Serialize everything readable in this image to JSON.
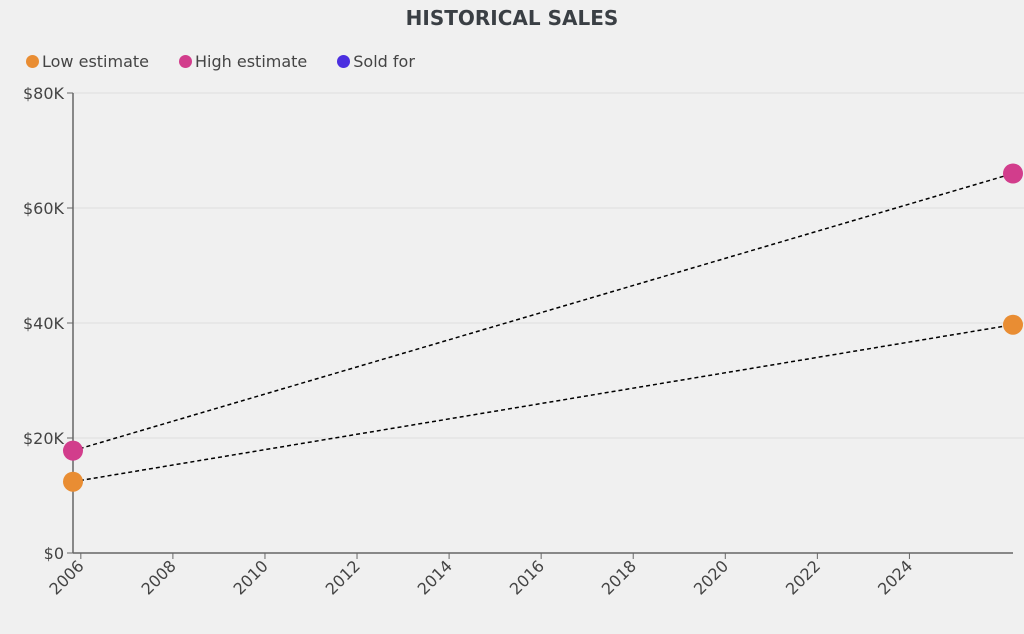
{
  "chart_data": {
    "type": "line",
    "title": "HISTORICAL SALES",
    "xlabel": "",
    "ylabel": "",
    "xlim": [
      2005.83,
      2026.25
    ],
    "ylim": [
      0,
      80000
    ],
    "x_ticks": [
      "2006",
      "2008",
      "2010",
      "2012",
      "2014",
      "2016",
      "2018",
      "2020",
      "2022",
      "2024"
    ],
    "y_ticks": [
      {
        "v": 0,
        "label": "$0"
      },
      {
        "v": 20000,
        "label": "$20K"
      },
      {
        "v": 40000,
        "label": "$40K"
      },
      {
        "v": 60000,
        "label": "$60K"
      },
      {
        "v": 80000,
        "label": "$80K"
      }
    ],
    "grid": "horizontal",
    "legend_placement": "top-left",
    "series": [
      {
        "name": "Low estimate",
        "color": "#e98d33",
        "x": [
          2005.83,
          2026.25
        ],
        "values": [
          12400,
          39700
        ]
      },
      {
        "name": "High estimate",
        "color": "#d23d8c",
        "x": [
          2005.83,
          2026.25
        ],
        "values": [
          17800,
          66000
        ]
      },
      {
        "name": "Sold for",
        "color": "#4b2fe0",
        "x": [],
        "values": []
      }
    ]
  }
}
